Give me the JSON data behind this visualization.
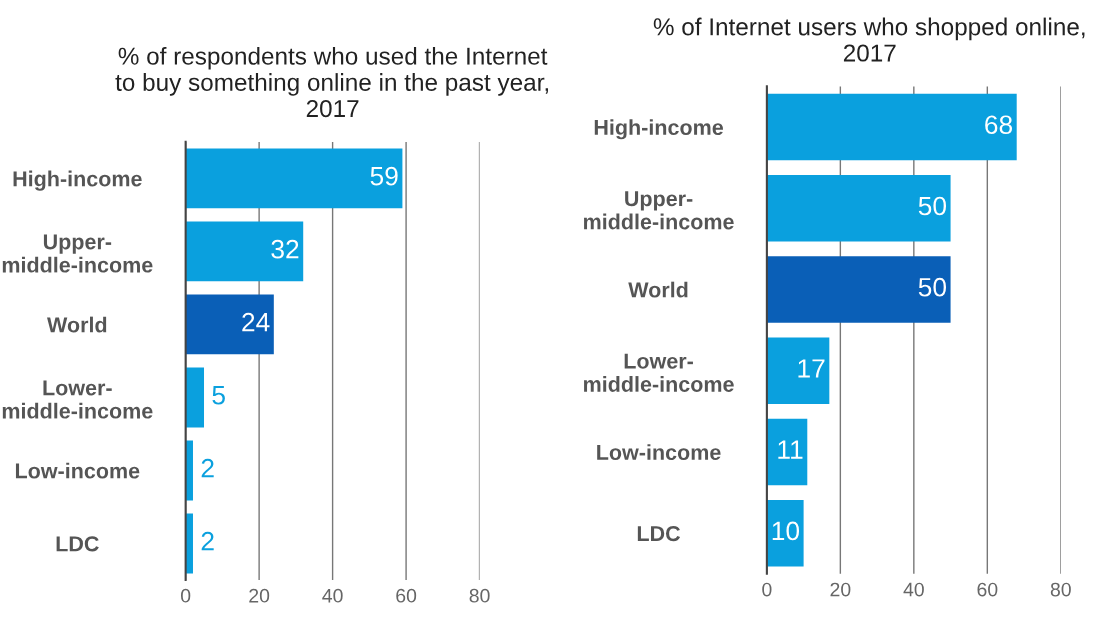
{
  "chart_data": [
    {
      "type": "bar",
      "orientation": "horizontal",
      "title": "% of respondents who used the Internet\nto buy something online in the past year,\n2017",
      "categories": [
        "High-income",
        "Upper-\nmiddle-income",
        "World",
        "Lower-\nmiddle-income",
        "Low-income",
        "LDC"
      ],
      "values": [
        59,
        32,
        24,
        5,
        2,
        2
      ],
      "colors": [
        "#0aa0de",
        "#0aa0de",
        "#0a5fb7",
        "#0aa0de",
        "#0aa0de",
        "#0aa0de"
      ],
      "xlim": [
        0,
        80
      ],
      "xticks": [
        0,
        20,
        40,
        60,
        80
      ],
      "grid": "x",
      "data_labels": true
    },
    {
      "type": "bar",
      "orientation": "horizontal",
      "title": "% of Internet users who shopped online,\n2017",
      "categories": [
        "High-income",
        "Upper-\nmiddle-income",
        "World",
        "Lower-\nmiddle-income",
        "Low-income",
        "LDC"
      ],
      "values": [
        68,
        50,
        50,
        17,
        11,
        10
      ],
      "colors": [
        "#0aa0de",
        "#0aa0de",
        "#0a5fb7",
        "#0aa0de",
        "#0aa0de",
        "#0aa0de"
      ],
      "xlim": [
        0,
        80
      ],
      "xticks": [
        0,
        20,
        40,
        60,
        80
      ],
      "grid": "x",
      "data_labels": true
    }
  ]
}
